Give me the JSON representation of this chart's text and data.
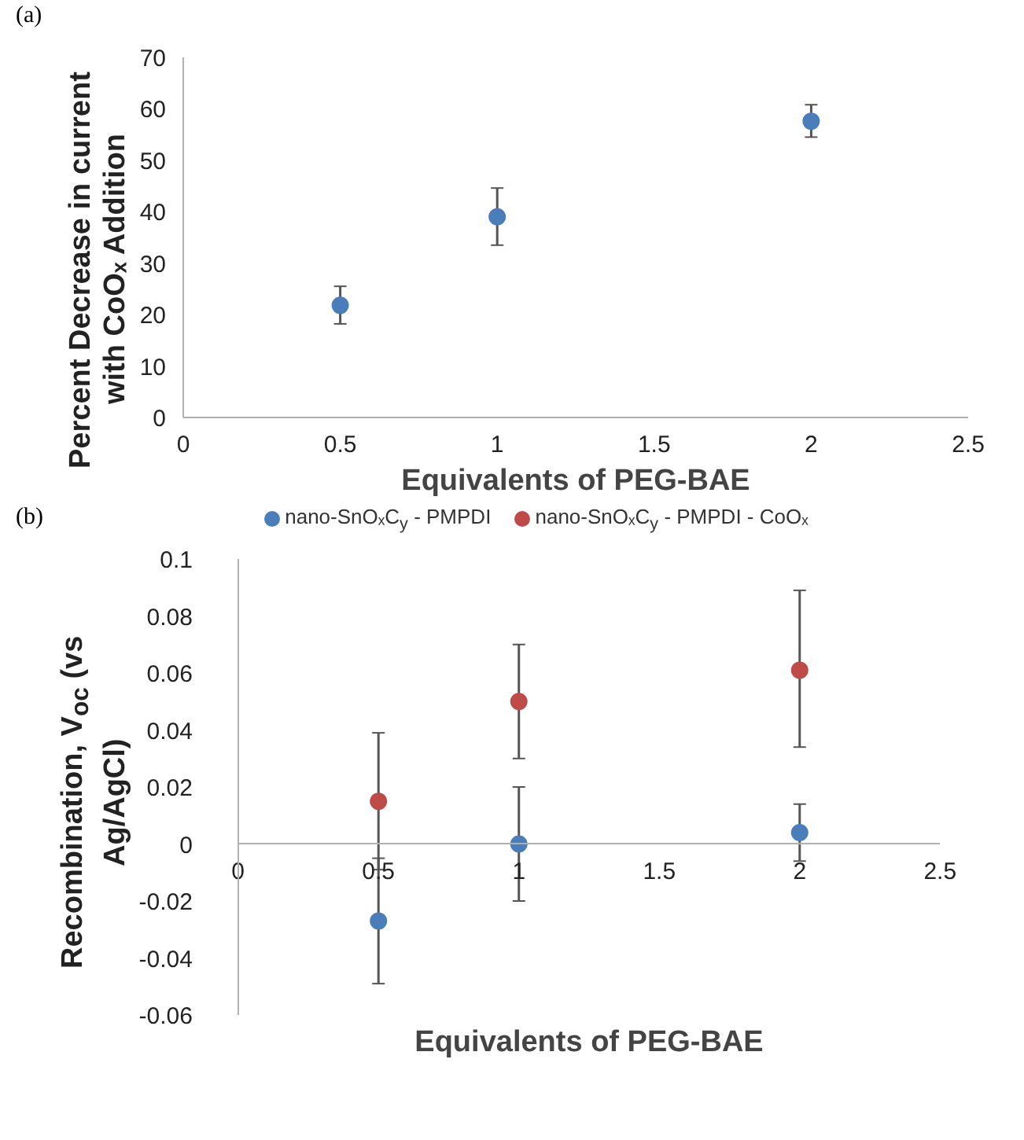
{
  "chart_data": [
    {
      "type": "scatter",
      "annotations": [
        "(a)"
      ],
      "xlabel": "Equivalents of PEG-BAE",
      "ylabel": "Percent Decrease in current with CoOₓ Addition",
      "x": [
        0.5,
        1,
        2
      ],
      "series": [
        {
          "color": "#4a7ebb",
          "values": [
            21.8,
            39,
            57.6
          ],
          "errors": [
            [
              18.2,
              25.5
            ],
            [
              33.5,
              44.6
            ],
            [
              54.5,
              60.8
            ]
          ]
        }
      ],
      "xlim": [
        0,
        2.5
      ],
      "xticks": [
        0,
        0.5,
        1,
        1.5,
        2,
        2.5
      ],
      "ylim": [
        0,
        70
      ],
      "yticks": [
        0,
        10,
        20,
        30,
        40,
        50,
        60,
        70
      ],
      "grid": false,
      "marker": "circle",
      "legend": false
    },
    {
      "type": "scatter",
      "annotations": [
        "(b)"
      ],
      "xlabel": "Equivalents of PEG-BAE",
      "ylabel": "Recombination, V$_{oc}$ (vs Ag/AgCl)",
      "x": [
        0.5,
        1,
        2
      ],
      "series": [
        {
          "name": "nano-SnOₓC$_{y}$ - PMPDI",
          "color": "#4a7ebb",
          "values": [
            -0.027,
            0,
            0.004
          ],
          "errors": [
            [
              -0.049,
              -0.005
            ],
            [
              -0.02,
              0.02
            ],
            [
              -0.006,
              0.014
            ]
          ]
        },
        {
          "name": "nano-SnOₓC$_{y}$ - PMPDI - CoOₓ",
          "color": "#be4b48",
          "values": [
            0.015,
            0.05,
            0.061
          ],
          "errors": [
            [
              -0.009,
              0.039
            ],
            [
              0.03,
              0.07
            ],
            [
              0.034,
              0.089
            ]
          ]
        }
      ],
      "xlim": [
        0,
        2.5
      ],
      "xticks": [
        0,
        0.5,
        1,
        1.5,
        2,
        2.5
      ],
      "ylim": [
        -0.06,
        0.1
      ],
      "yticks": [
        -0.06,
        -0.04,
        -0.02,
        0,
        0.02,
        0.04,
        0.06,
        0.08,
        0.1
      ],
      "grid": false,
      "marker": "circle",
      "legend": "top"
    }
  ]
}
